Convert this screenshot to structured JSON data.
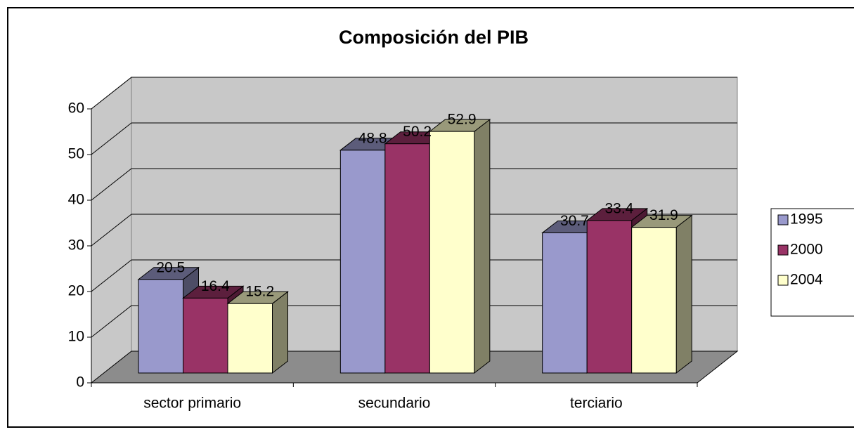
{
  "chart_data": {
    "type": "bar3d",
    "title": "Composición del PIB",
    "categories": [
      "sector primario",
      "secundario",
      "terciario"
    ],
    "series": [
      {
        "name": "1995",
        "color": "#9999cc",
        "values": [
          20.5,
          48.8,
          30.7
        ]
      },
      {
        "name": "2000",
        "color": "#993366",
        "values": [
          16.4,
          50.2,
          33.4
        ]
      },
      {
        "name": "2004",
        "color": "#ffffcc",
        "values": [
          15.2,
          52.9,
          31.9
        ]
      }
    ],
    "ylim": [
      0,
      60
    ],
    "yticks": [
      0,
      10,
      20,
      30,
      40,
      50,
      60
    ],
    "grid": true,
    "legend": "right"
  }
}
